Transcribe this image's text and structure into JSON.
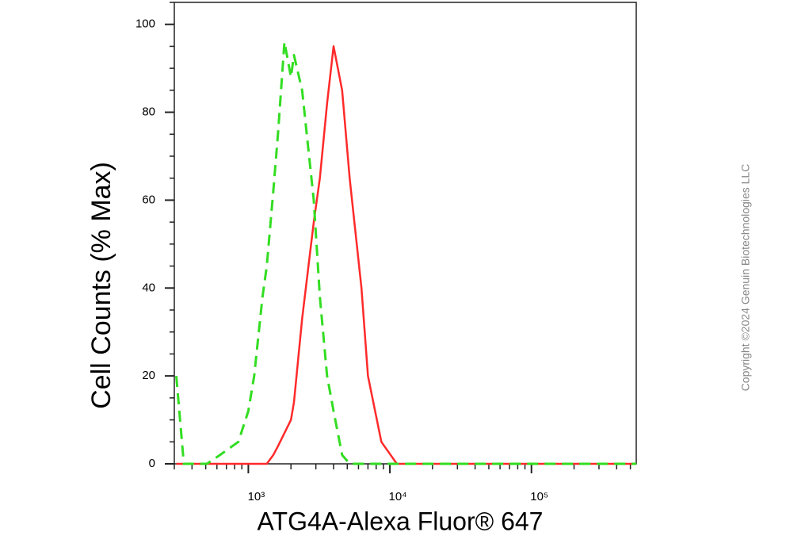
{
  "chart_data": {
    "type": "line",
    "x_label": "ATG4A-Alexa Fluor® 647",
    "y_label": "Cell Counts (% Max)",
    "note": "Copyright ©2024 Genuin Biotechnologies LLC",
    "x_scale": "log",
    "xlim": [
      300,
      550000
    ],
    "xticks": [
      {
        "value": 1000,
        "label": "10³"
      },
      {
        "value": 10000,
        "label": "10⁴"
      },
      {
        "value": 100000,
        "label": "10⁵"
      }
    ],
    "ylim": [
      0,
      105
    ],
    "yticks": [
      0,
      20,
      40,
      60,
      80,
      100
    ],
    "grid": false,
    "x": [
      310,
      350,
      400,
      510,
      630,
      850,
      1000,
      1100,
      1260,
      1350,
      1500,
      1620,
      1800,
      2000,
      2100,
      2400,
      2900,
      3200,
      3600,
      4000,
      4600,
      5200,
      6300,
      7000,
      8700,
      11200,
      20000,
      100000,
      550000
    ],
    "series": [
      {
        "color": "#ff2a2a",
        "line_style": "solid",
        "values": [
          0,
          0,
          0,
          0,
          0,
          0,
          0,
          0,
          0,
          0,
          2,
          4,
          7,
          10,
          14,
          33,
          55,
          65,
          82,
          95,
          85,
          65,
          40,
          20,
          5,
          0,
          0,
          0,
          0
        ]
      },
      {
        "color": "#33dd22",
        "line_style": "dashed",
        "values": [
          20,
          0,
          0,
          0,
          2,
          5,
          12,
          20,
          38,
          45,
          62,
          75,
          96,
          88,
          93,
          85,
          60,
          38,
          20,
          12,
          2,
          0,
          0,
          0,
          0,
          0,
          0,
          0,
          0
        ]
      }
    ]
  }
}
